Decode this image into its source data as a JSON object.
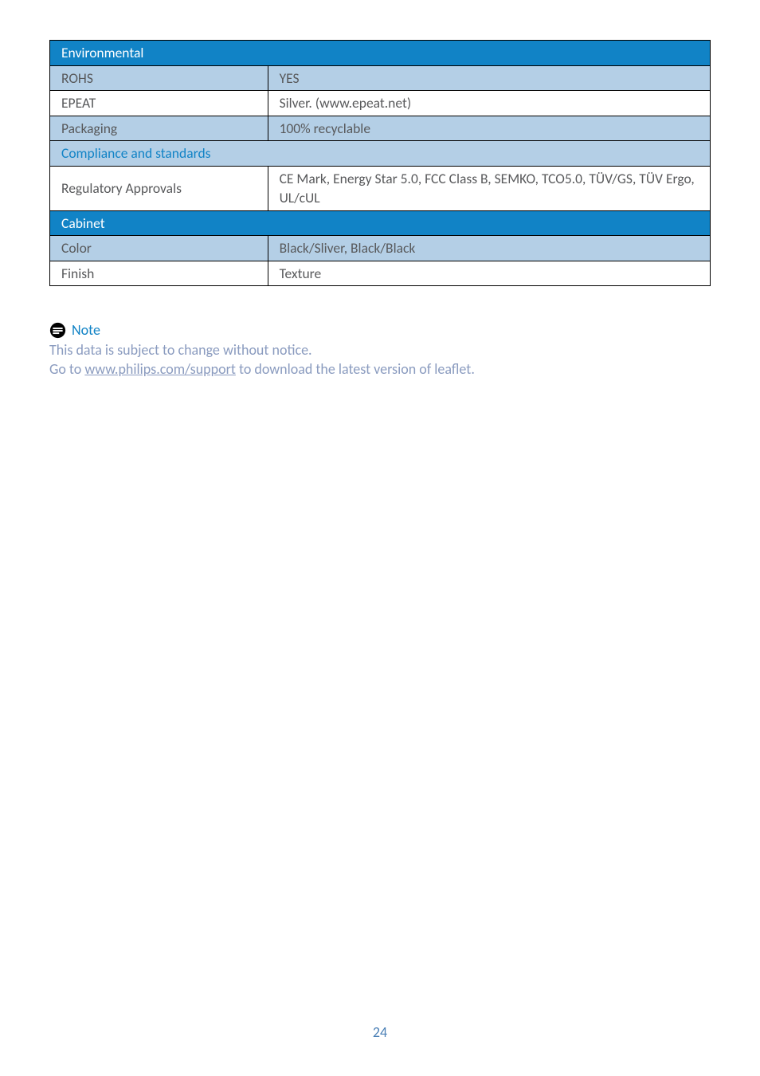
{
  "table": {
    "sections": [
      {
        "header": "Environmental",
        "header_style": "section-header",
        "rows": [
          {
            "label": "ROHS",
            "value": "YES",
            "style": "row-blue"
          },
          {
            "label": "EPEAT",
            "value": "Silver. (www.epeat.net)",
            "style": "row-white"
          },
          {
            "label": "Packaging",
            "value": "100% recyclable",
            "style": "row-blue"
          }
        ]
      },
      {
        "header": "Compliance and standards",
        "header_style": "section-header-light",
        "rows": [
          {
            "label": "Regulatory Approvals",
            "value": "CE Mark, Energy Star 5.0, FCC Class B, SEMKO, TCO5.0, TÜV/GS, TÜV Ergo, UL/cUL",
            "style": "row-white"
          }
        ]
      },
      {
        "header": "Cabinet",
        "header_style": "section-header",
        "rows": [
          {
            "label": "Color",
            "value": "Black/Sliver, Black/Black",
            "style": "row-blue"
          },
          {
            "label": "Finish",
            "value": "Texture",
            "style": "row-white"
          }
        ]
      }
    ]
  },
  "note": {
    "title": "Note",
    "line1": "This data is subject to change without notice.",
    "line2_prefix": "Go to ",
    "line2_link": "www.philips.com/support",
    "line2_suffix": " to download the latest version of leaflet."
  },
  "page_number": "24",
  "colors": {
    "header_bg": "#1183c6",
    "header_fg": "#ffffff",
    "light_header_bg": "#b4cfe6",
    "light_header_fg": "#1183c6",
    "row_blue_bg": "#b4cfe6",
    "row_white_bg": "#ffffff",
    "text_gray": "#58595b",
    "note_blue": "#1183c6",
    "note_gray": "#8a9bbf",
    "page_num_color": "#4a7fb5",
    "border_color": "#000000"
  },
  "typography": {
    "table_fontsize": 17.5,
    "note_fontsize": 18,
    "font_family": "Gill Sans"
  }
}
